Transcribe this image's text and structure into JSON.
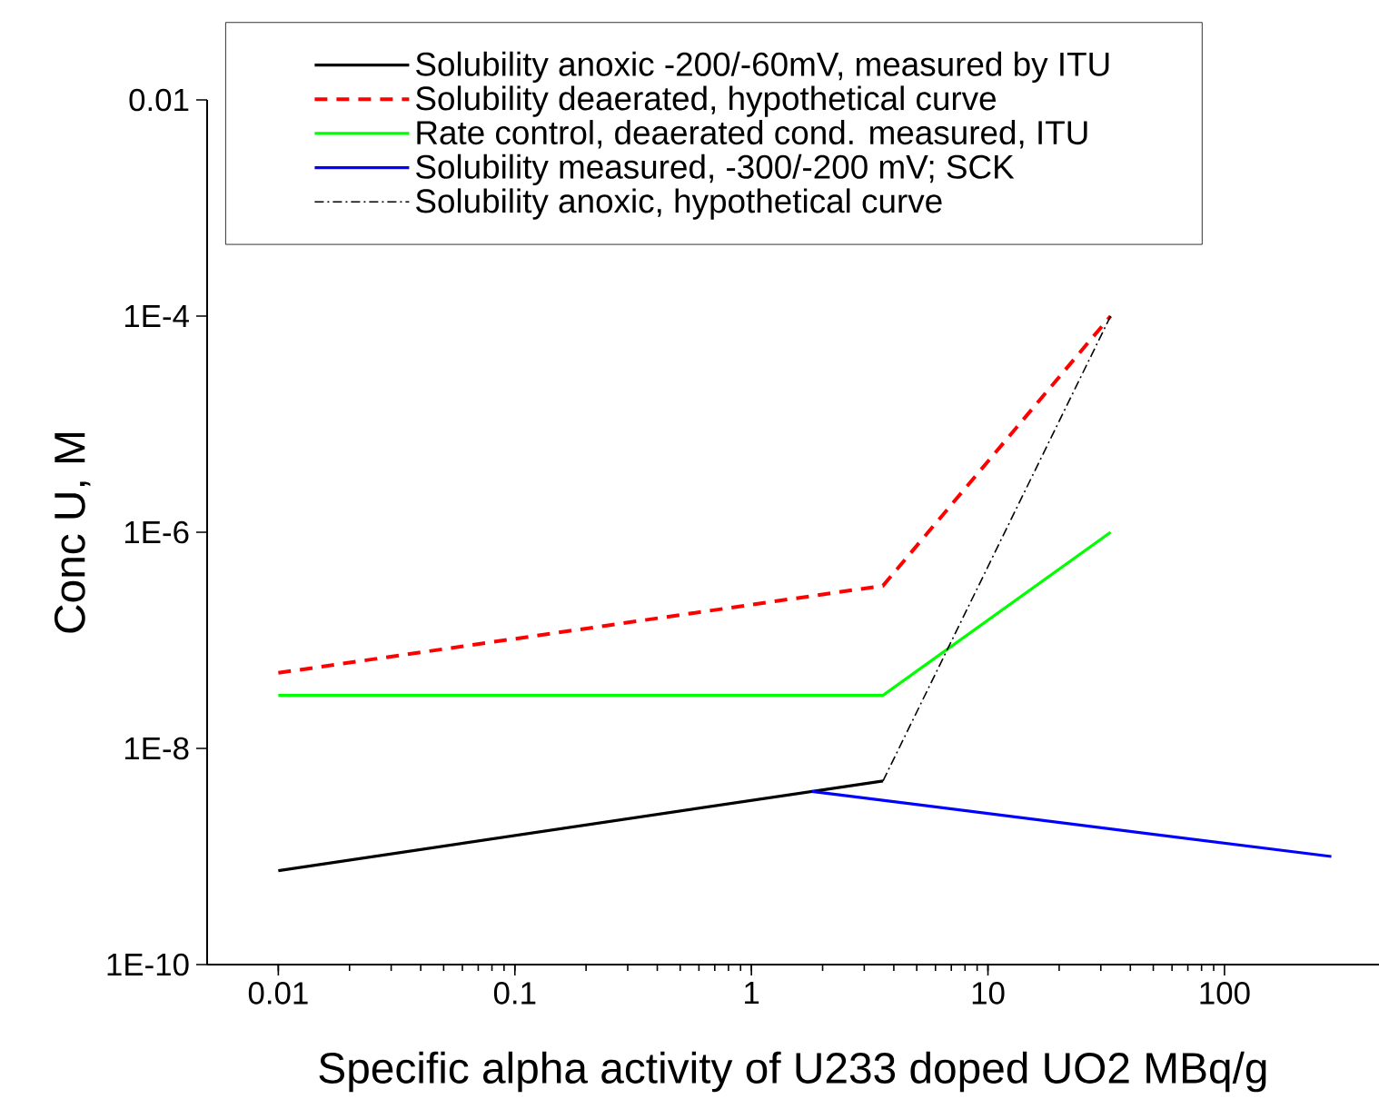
{
  "chart_data": {
    "type": "line",
    "xlabel": "Specific alpha activity of U233 doped UO2  MBq/g",
    "ylabel": "Conc U, M",
    "log": "xy",
    "xlim": [
      0.005,
      450
    ],
    "ylim": [
      1e-10,
      0.01
    ],
    "xticks": [
      0.01,
      0.1,
      1,
      10,
      100
    ],
    "yticks": [
      {
        "value": 1e-10,
        "label": "1E-10"
      },
      {
        "value": 1e-08,
        "label": "1E-8"
      },
      {
        "value": 1e-06,
        "label": "1E-6"
      },
      {
        "value": 0.0001,
        "label": "1E-4"
      },
      0.01
    ],
    "grid": false,
    "legend": "top",
    "marker": "none",
    "series": [
      {
        "name": "Solubility anoxic -200/-60mV, measured by ITU",
        "color": "#000000",
        "line_style": "solid",
        "x": [
          0.01,
          3.6
        ],
        "values": [
          7.4e-10,
          5e-09
        ]
      },
      {
        "name": "Solubility deaerated, hypothetical curve",
        "color": "#ff0000",
        "line_style": "dashed",
        "x": [
          0.01,
          3.6,
          33
        ],
        "values": [
          5e-08,
          3.2e-07,
          0.0001
        ]
      },
      {
        "name": "Rate control, deaerated cond. measured, ITU",
        "color": "#00ff00",
        "line_style": "solid",
        "x": [
          0.01,
          3.6,
          33
        ],
        "values": [
          3.1e-08,
          3.1e-08,
          1e-06
        ]
      },
      {
        "name": "Solubility measured, -300/-200 mV; SCK",
        "color": "#0000ff",
        "line_style": "solid",
        "x": [
          1.8,
          283
        ],
        "values": [
          4e-09,
          1e-09
        ]
      },
      {
        "name": "Solubility anoxic, hypothetical curve",
        "color": "#000000",
        "line_style": "dashdot",
        "x": [
          3.6,
          33
        ],
        "values": [
          5e-09,
          0.0001
        ]
      }
    ]
  }
}
